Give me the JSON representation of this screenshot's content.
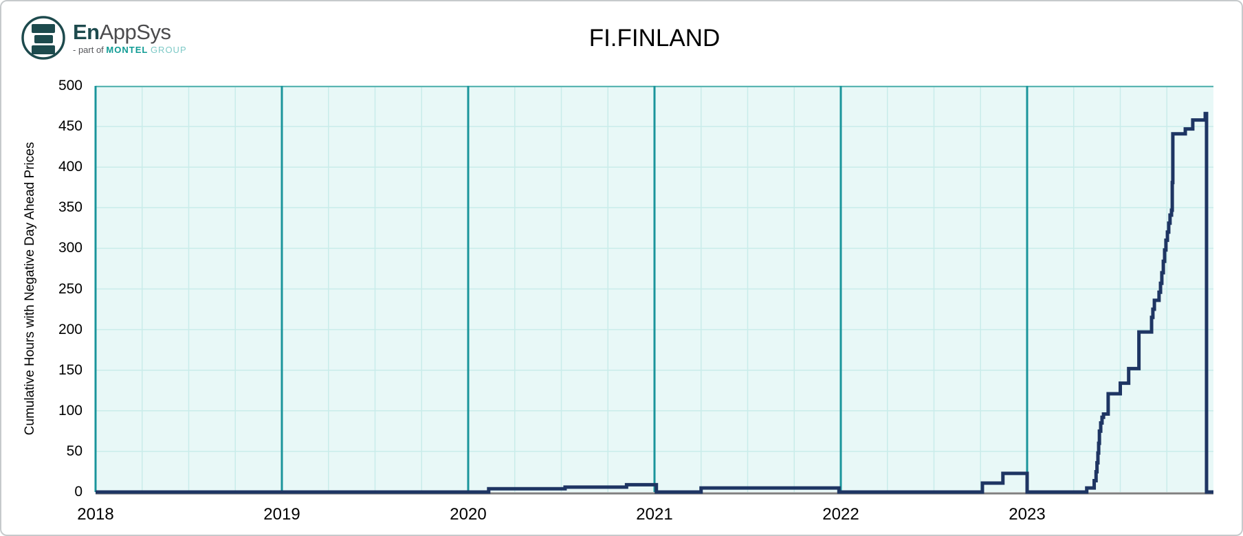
{
  "logo": {
    "brand_bold": "En",
    "brand_rest": "AppSys",
    "tagline_prefix": "- part of",
    "tagline_brand": "MONTEL",
    "tagline_suffix": "GROUP"
  },
  "header": {
    "title": "FI.FINLAND"
  },
  "chart_data": {
    "type": "line",
    "line_style": "step-after",
    "title": "FI.FINLAND",
    "xlabel": "",
    "ylabel": "Cumulative Hours with Negative Day Ahead Prices",
    "xlim": [
      2018,
      2024
    ],
    "ylim": [
      0,
      500
    ],
    "x_ticks": [
      2018,
      2019,
      2020,
      2021,
      2022,
      2023
    ],
    "y_ticks": [
      0,
      50,
      100,
      150,
      200,
      250,
      300,
      350,
      400,
      450,
      500
    ],
    "x_minor_grid_interval": 0.25,
    "grid": "on",
    "legend": "none",
    "colors": {
      "background": "#e8f8f7",
      "grid": "#c9ecea",
      "year_line": "#1a959b",
      "plot_border": "#5ab5b2",
      "line": "#1e3563",
      "axis": "#7f7f7f",
      "text": "#000000"
    },
    "series": [
      {
        "name": "FI.FINLAND",
        "points": [
          [
            2018.0,
            0
          ],
          [
            2020.11,
            4
          ],
          [
            2020.52,
            6
          ],
          [
            2020.85,
            9
          ],
          [
            2021.01,
            0
          ],
          [
            2021.25,
            5
          ],
          [
            2021.99,
            0
          ],
          [
            2022.76,
            11
          ],
          [
            2022.87,
            23
          ],
          [
            2023.0,
            0
          ],
          [
            2023.32,
            5
          ],
          [
            2023.36,
            14
          ],
          [
            2023.37,
            25
          ],
          [
            2023.375,
            36
          ],
          [
            2023.38,
            48
          ],
          [
            2023.384,
            60
          ],
          [
            2023.388,
            75
          ],
          [
            2023.395,
            85
          ],
          [
            2023.402,
            92
          ],
          [
            2023.41,
            96
          ],
          [
            2023.435,
            121
          ],
          [
            2023.5,
            134
          ],
          [
            2023.545,
            152
          ],
          [
            2023.6,
            197
          ],
          [
            2023.668,
            215
          ],
          [
            2023.675,
            225
          ],
          [
            2023.683,
            236
          ],
          [
            2023.708,
            246
          ],
          [
            2023.716,
            257
          ],
          [
            2023.723,
            270
          ],
          [
            2023.731,
            284
          ],
          [
            2023.738,
            298
          ],
          [
            2023.745,
            310
          ],
          [
            2023.753,
            320
          ],
          [
            2023.76,
            331
          ],
          [
            2023.767,
            341
          ],
          [
            2023.775,
            347
          ],
          [
            2023.779,
            381
          ],
          [
            2023.782,
            441
          ],
          [
            2023.849,
            447
          ],
          [
            2023.889,
            458
          ],
          [
            2023.956,
            466
          ],
          [
            2023.963,
            0
          ],
          [
            2024.0,
            0
          ]
        ]
      }
    ]
  }
}
